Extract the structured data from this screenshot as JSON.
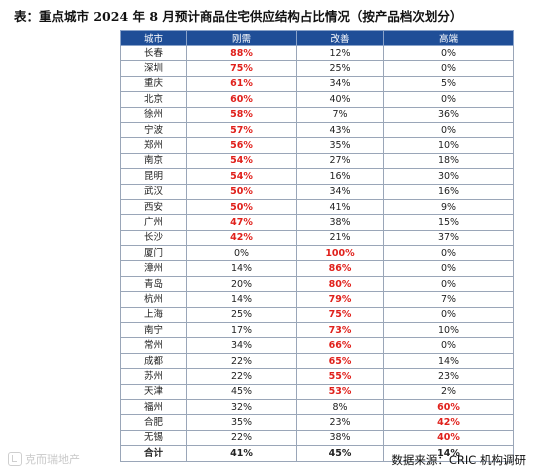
{
  "title": "表：重点城市 2024 年 8 月预计商品住宅供应结构占比情况（按产品档次划分）",
  "table": {
    "headers": [
      "城市",
      "刚需",
      "改善",
      "高端"
    ],
    "rows": [
      {
        "city": "长春",
        "values": [
          "88%",
          "12%",
          "0%"
        ],
        "highlight": 1
      },
      {
        "city": "深圳",
        "values": [
          "75%",
          "25%",
          "0%"
        ],
        "highlight": 1
      },
      {
        "city": "重庆",
        "values": [
          "61%",
          "34%",
          "5%"
        ],
        "highlight": 1
      },
      {
        "city": "北京",
        "values": [
          "60%",
          "40%",
          "0%"
        ],
        "highlight": 1
      },
      {
        "city": "徐州",
        "values": [
          "58%",
          "7%",
          "36%"
        ],
        "highlight": 1
      },
      {
        "city": "宁波",
        "values": [
          "57%",
          "43%",
          "0%"
        ],
        "highlight": 1
      },
      {
        "city": "郑州",
        "values": [
          "56%",
          "35%",
          "10%"
        ],
        "highlight": 1
      },
      {
        "city": "南京",
        "values": [
          "54%",
          "27%",
          "18%"
        ],
        "highlight": 1
      },
      {
        "city": "昆明",
        "values": [
          "54%",
          "16%",
          "30%"
        ],
        "highlight": 1
      },
      {
        "city": "武汉",
        "values": [
          "50%",
          "34%",
          "16%"
        ],
        "highlight": 1
      },
      {
        "city": "西安",
        "values": [
          "50%",
          "41%",
          "9%"
        ],
        "highlight": 1
      },
      {
        "city": "广州",
        "values": [
          "47%",
          "38%",
          "15%"
        ],
        "highlight": 1
      },
      {
        "city": "长沙",
        "values": [
          "42%",
          "21%",
          "37%"
        ],
        "highlight": 1
      },
      {
        "city": "厦门",
        "values": [
          "0%",
          "100%",
          "0%"
        ],
        "highlight": 2
      },
      {
        "city": "漳州",
        "values": [
          "14%",
          "86%",
          "0%"
        ],
        "highlight": 2
      },
      {
        "city": "青岛",
        "values": [
          "20%",
          "80%",
          "0%"
        ],
        "highlight": 2
      },
      {
        "city": "杭州",
        "values": [
          "14%",
          "79%",
          "7%"
        ],
        "highlight": 2
      },
      {
        "city": "上海",
        "values": [
          "25%",
          "75%",
          "0%"
        ],
        "highlight": 2
      },
      {
        "city": "南宁",
        "values": [
          "17%",
          "73%",
          "10%"
        ],
        "highlight": 2
      },
      {
        "city": "常州",
        "values": [
          "34%",
          "66%",
          "0%"
        ],
        "highlight": 2
      },
      {
        "city": "成都",
        "values": [
          "22%",
          "65%",
          "14%"
        ],
        "highlight": 2
      },
      {
        "city": "苏州",
        "values": [
          "22%",
          "55%",
          "23%"
        ],
        "highlight": 2
      },
      {
        "city": "天津",
        "values": [
          "45%",
          "53%",
          "2%"
        ],
        "highlight": 2
      },
      {
        "city": "福州",
        "values": [
          "32%",
          "8%",
          "60%"
        ],
        "highlight": 3
      },
      {
        "city": "合肥",
        "values": [
          "35%",
          "23%",
          "42%"
        ],
        "highlight": 3
      },
      {
        "city": "无锡",
        "values": [
          "22%",
          "38%",
          "40%"
        ],
        "highlight": 3
      }
    ],
    "total": {
      "city": "合计",
      "values": [
        "41%",
        "45%",
        "14%"
      ]
    }
  },
  "source": "数据来源：CRIC 机构调研",
  "watermark": "克而瑞地产",
  "colors": {
    "header_bg": "#1f4e97",
    "highlight_text": "#e0201b"
  }
}
